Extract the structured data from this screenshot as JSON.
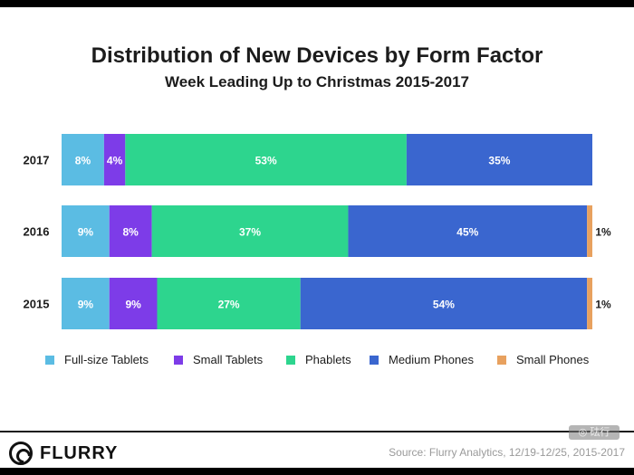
{
  "chart_data": {
    "type": "bar",
    "orientation": "horizontal",
    "stacked": true,
    "title": "Distribution of New Devices by Form Factor",
    "subtitle": "Week Leading Up to Christmas 2015-2017",
    "categories": [
      "2017",
      "2016",
      "2015"
    ],
    "series": [
      {
        "name": "Full-size Tablets",
        "color": "#5bbce3",
        "values": [
          8,
          9,
          9
        ],
        "labels": [
          "8%",
          "9%",
          "9%"
        ]
      },
      {
        "name": "Small Tablets",
        "color": "#7d3ce8",
        "values": [
          4,
          8,
          9
        ],
        "labels": [
          "4%",
          "8%",
          "9%"
        ]
      },
      {
        "name": "Phablets",
        "color": "#2dd58e",
        "values": [
          53,
          37,
          27
        ],
        "labels": [
          "53%",
          "37%",
          "27%"
        ]
      },
      {
        "name": "Medium Phones",
        "color": "#3a66cf",
        "values": [
          35,
          45,
          54
        ],
        "labels": [
          "35%",
          "45%",
          "54%"
        ]
      },
      {
        "name": "Small Phones",
        "color": "#e8a15f",
        "values": [
          0,
          1,
          1
        ],
        "labels": [
          "",
          "1%",
          "1%"
        ]
      }
    ],
    "xlim": [
      0,
      100
    ],
    "legend": "bottom"
  },
  "footer": {
    "logo": "FLURRY",
    "source": "Source: Flurry Analytics, 12/19-12/25, 2015-2017",
    "watermark": "◎ 砝行"
  }
}
